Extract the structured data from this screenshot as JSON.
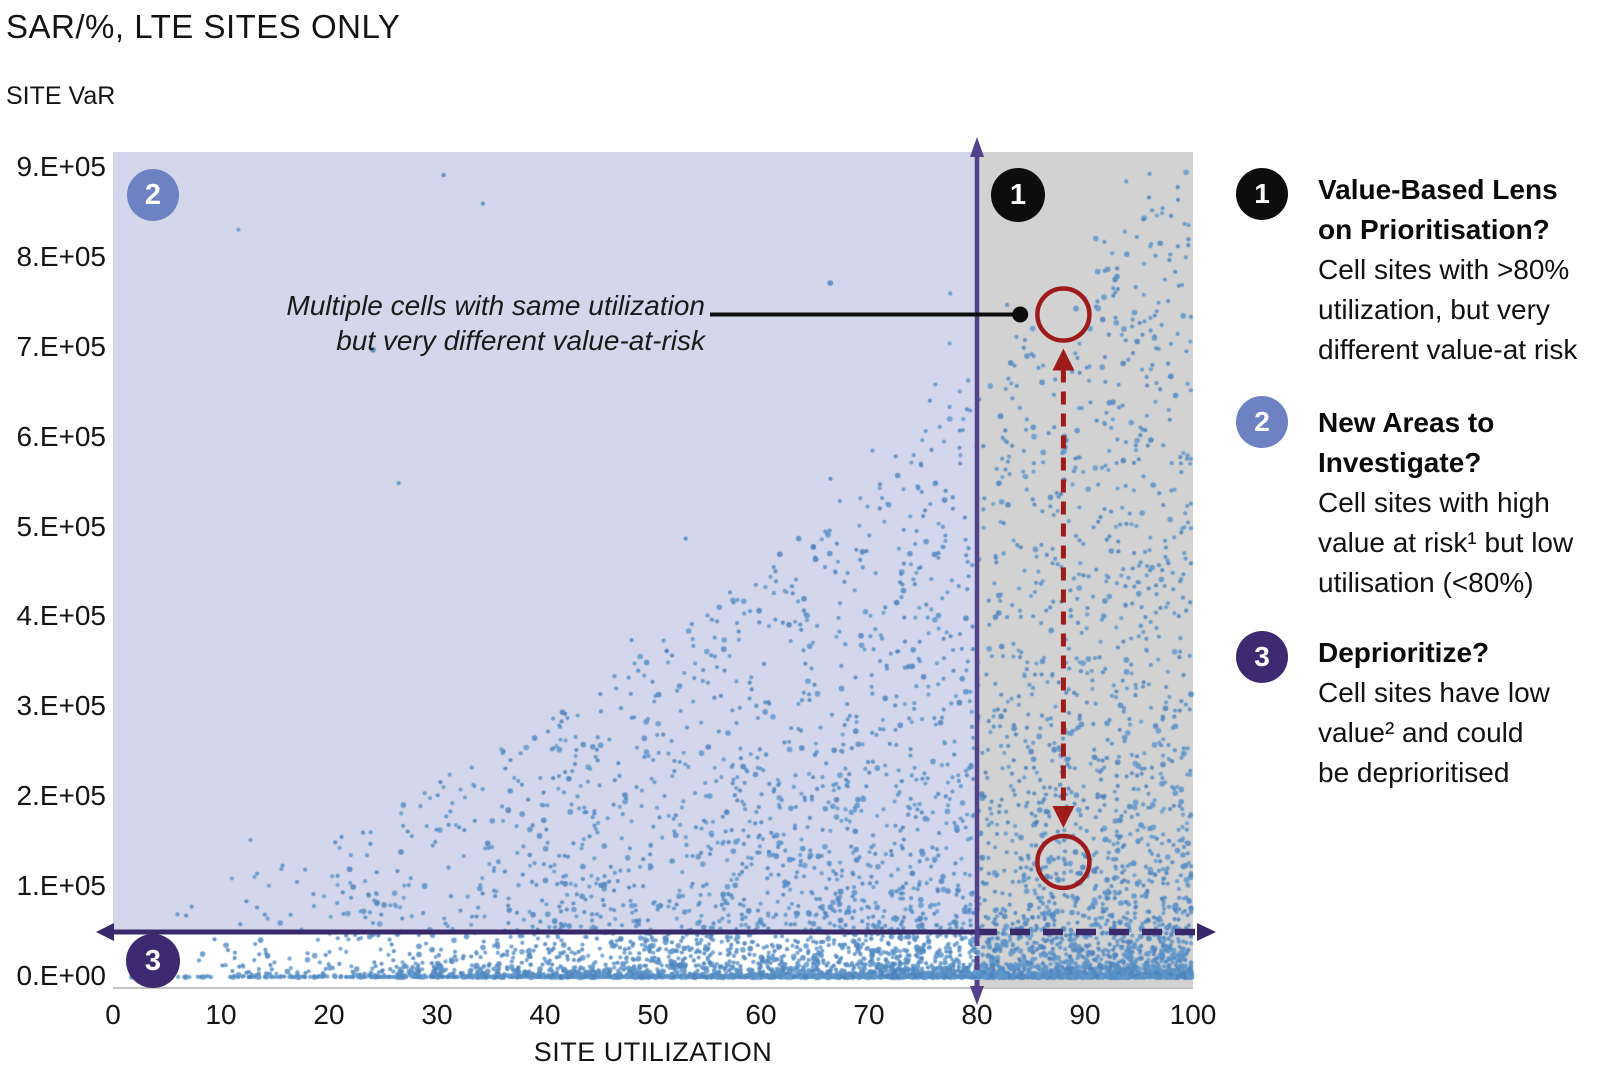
{
  "header": {
    "title": "SAR/%, LTE SITES ONLY",
    "y_axis_title": "SITE VaR"
  },
  "annotation": {
    "line1": "Multiple cells with same utilization",
    "line2": "but very different value-at-risk"
  },
  "legend": {
    "items": [
      {
        "badge": "1",
        "badge_color": "#0d0d0d",
        "title1": "Value-Based Lens",
        "title2": "on Prioritisation?",
        "body1": "Cell sites with >80%",
        "body2": "utilization, but very",
        "body3": "different value-at risk"
      },
      {
        "badge": "2",
        "badge_color": "#6c82c3",
        "title1": "New Areas to",
        "title2": "Investigate?",
        "body1": "Cell sites with high",
        "body2": "value at risk¹ but low",
        "body3": "utilisation (<80%)"
      },
      {
        "badge": "3",
        "badge_color": "#3e2a70",
        "title1": "Deprioritize?",
        "body1": "Cell sites have low",
        "body2": "value² and could",
        "body3": "be deprioritised"
      }
    ]
  },
  "chart_data": {
    "type": "scatter",
    "title": "SAR/%, LTE SITES ONLY",
    "xlabel": "SITE UTILIZATION",
    "ylabel": "SITE VaR",
    "xlim": [
      0,
      100
    ],
    "ylim": [
      0,
      900000
    ],
    "x_ticks": [
      "0",
      "10",
      "20",
      "30",
      "40",
      "50",
      "60",
      "70",
      "80",
      "90",
      "100"
    ],
    "y_ticks_top_to_bottom": [
      "9.E+05",
      "8.E+05",
      "7.E+05",
      "6.E+05",
      "5.E+05",
      "4.E+05",
      "3.E+05",
      "2.E+05",
      "1.E+05",
      "0.E+00"
    ],
    "grid": false,
    "legend_position": "right",
    "point_color": "#5b92c8",
    "point_color_variants": [
      "#5b92c8",
      "#548cc4",
      "#4d83bd",
      "#6299cd"
    ],
    "region_colors": {
      "low_utilization": "#d4d7eb",
      "high_utilization": "#d2d2d2"
    },
    "threshold_line_colors": {
      "vertical": "#54418c",
      "horizontal": "#38296b"
    },
    "highlight_color": "#9e1b1c",
    "thresholds": {
      "utilization_line_x": 80,
      "site_var_line_y": 50000
    },
    "zones": [
      {
        "label": "1",
        "color": "#0d0d0d"
      },
      {
        "label": "2",
        "color": "#6c82c3"
      },
      {
        "label": "3",
        "color": "#3e2a70"
      }
    ],
    "highlights": {
      "upper_circle": {
        "x": 88,
        "y": 737000
      },
      "lower_circle": {
        "x": 88,
        "y": 128000
      },
      "callout_dot": {
        "x": 84,
        "y": 737000
      }
    },
    "points_generation": {
      "seed": 42,
      "n": 7000,
      "x_skew_exp": 0.42,
      "envelope_base": 90000,
      "envelope_scale": 810000,
      "envelope_exp": 1.55,
      "y_depth_exp": 5.2,
      "upper_outlier_prob": 0.005,
      "envelope_outlier_prob": 0.012,
      "y_max_cap": 905000
    }
  }
}
